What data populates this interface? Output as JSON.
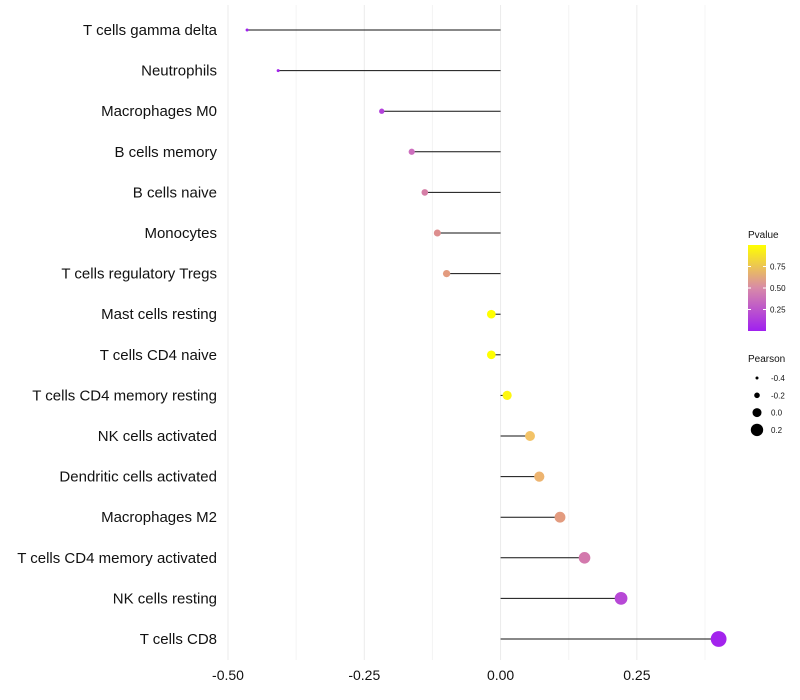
{
  "chart_data": {
    "type": "lollipop",
    "categories": [
      "T cells gamma delta",
      "Neutrophils",
      "Macrophages M0",
      "B cells memory",
      "B cells naive",
      "Monocytes",
      "T cells regulatory  Tregs ",
      "Mast cells resting",
      "T cells CD4 naive",
      "T cells CD4 memory resting",
      "NK cells activated",
      "Dendritic cells activated",
      "Macrophages M2",
      "T cells CD4 memory activated",
      "NK cells resting",
      "T cells CD8"
    ],
    "pearson": [
      -0.465,
      -0.408,
      -0.218,
      -0.163,
      -0.139,
      -0.116,
      -0.099,
      -0.017,
      -0.017,
      0.012,
      0.054,
      0.071,
      0.109,
      0.154,
      0.221,
      0.4
    ],
    "pvalue": [
      0.0,
      0.02,
      0.15,
      0.35,
      0.45,
      0.55,
      0.62,
      1.0,
      1.0,
      0.97,
      0.78,
      0.72,
      0.62,
      0.42,
      0.18,
      0.02
    ],
    "xlim": [
      -0.5,
      0.43
    ],
    "xticks": [
      -0.5,
      -0.25,
      0.0,
      0.25
    ],
    "xtick_labels": [
      "-0.50",
      "-0.25",
      "0.00",
      "0.25"
    ],
    "legend": {
      "color": {
        "title": "Pvalue",
        "ticks": [
          0.25,
          0.5,
          0.75
        ],
        "tick_labels": [
          "0.25",
          "0.50",
          "0.75"
        ],
        "range": [
          0.0,
          1.0
        ],
        "low_color": "#a020f0",
        "high_color": "#ffff00"
      },
      "size": {
        "title": "Pearson",
        "values": [
          -0.4,
          -0.2,
          0.0,
          0.2
        ],
        "labels": [
          "-0.4",
          "-0.2",
          "0.0",
          "0.2"
        ]
      }
    },
    "grid": "vertical"
  }
}
